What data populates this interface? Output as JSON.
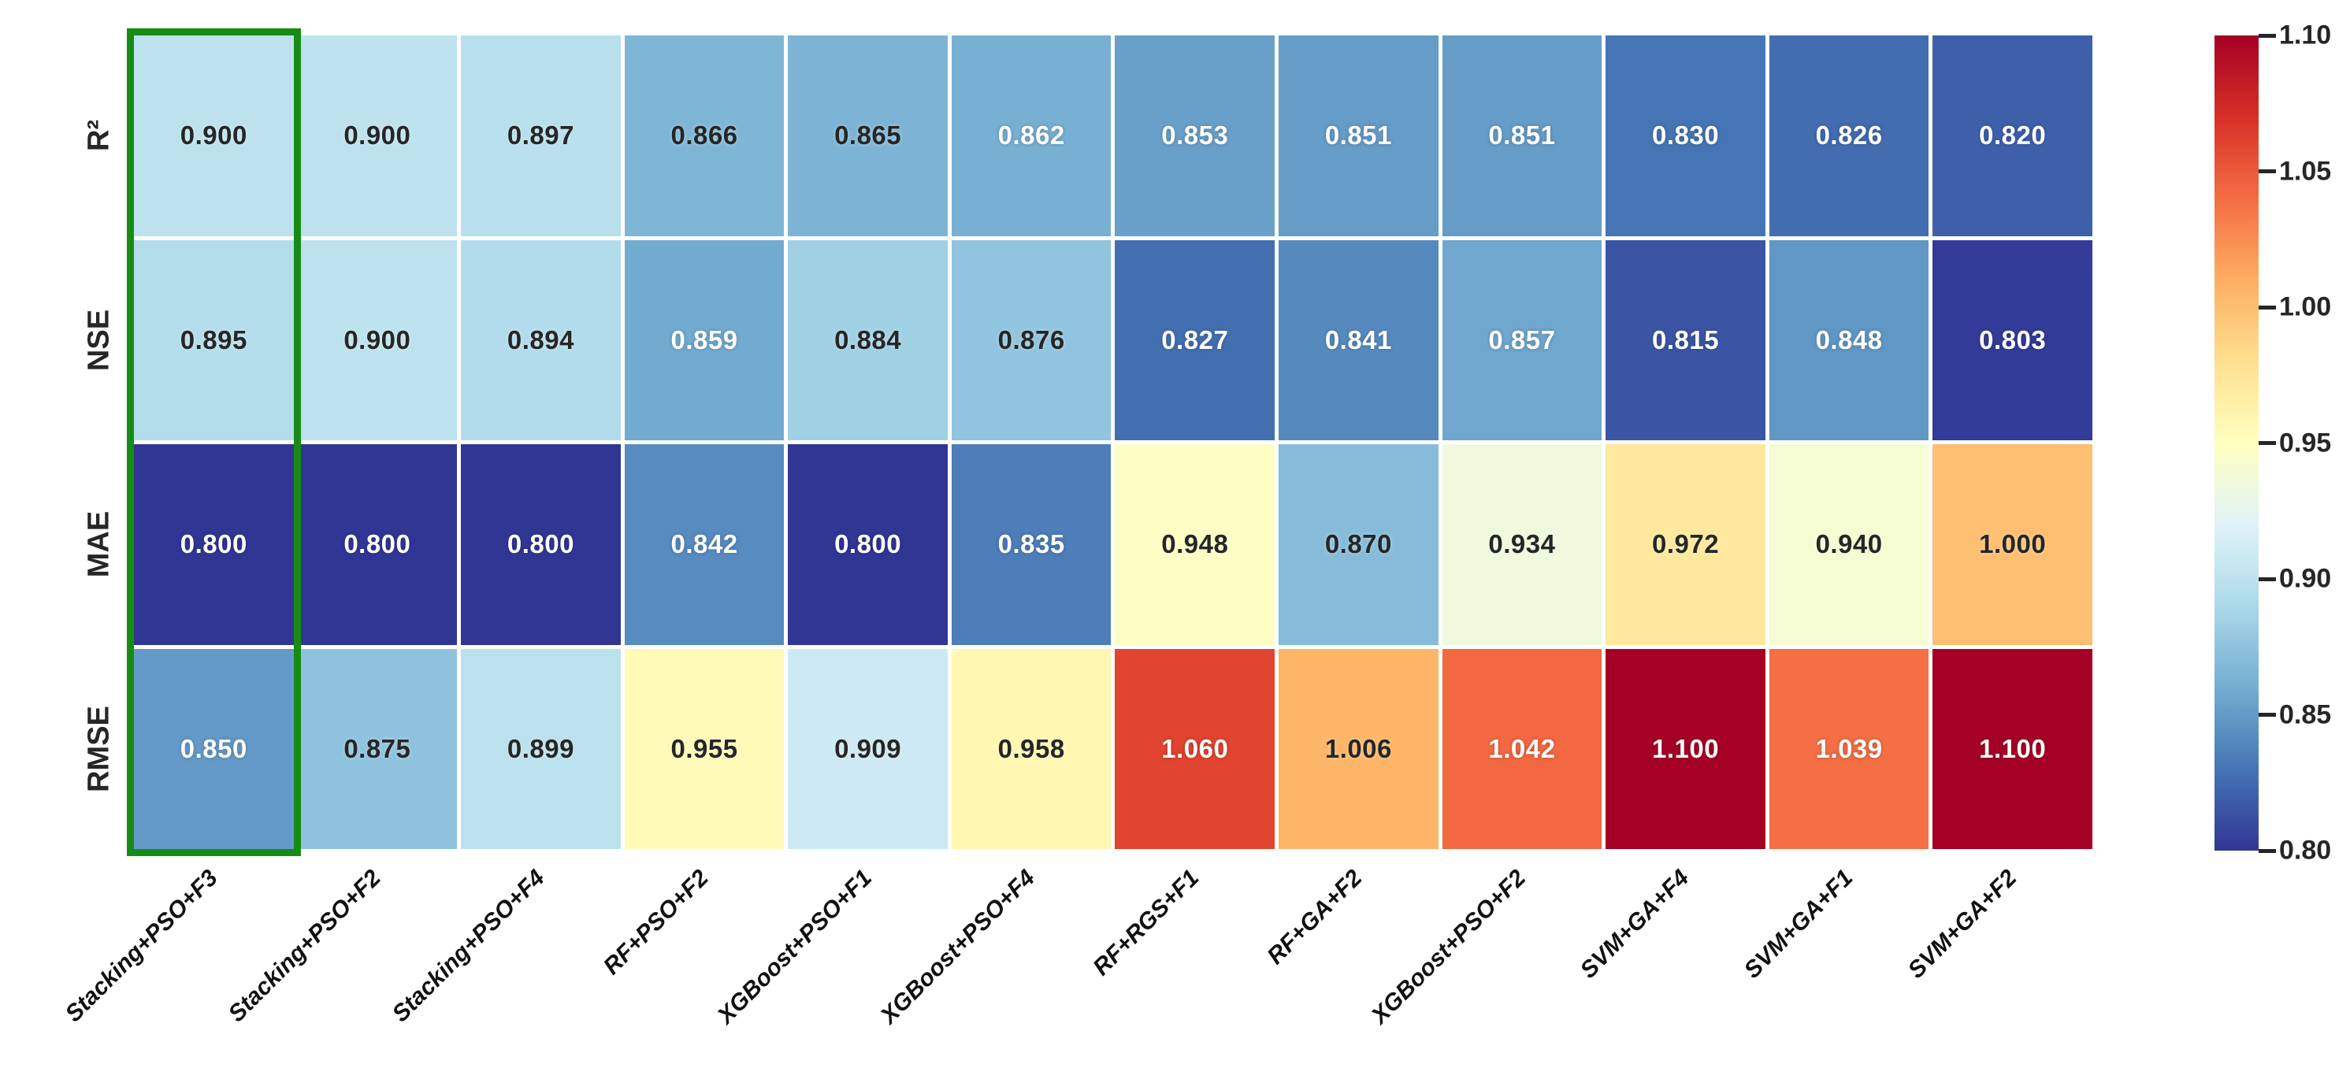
{
  "chart_data": {
    "type": "heatmap",
    "title": "",
    "rows": [
      "R²",
      "NSE",
      "MAE",
      "RMSE"
    ],
    "columns": [
      "Stacking+PSO+F3",
      "Stacking+PSO+F2",
      "Stacking+PSO+F4",
      "RF+PSO+F2",
      "XGBoost+PSO+F1",
      "XGBoost+PSO+F4",
      "RF+RGS+F1",
      "RF+GA+F2",
      "XGBoost+PSO+F2",
      "SVM+GA+F4",
      "SVM+GA+F1",
      "SVM+GA+F2"
    ],
    "values": [
      [
        "0.900",
        "0.900",
        "0.897",
        "0.866",
        "0.865",
        "0.862",
        "0.853",
        "0.851",
        "0.851",
        "0.830",
        "0.826",
        "0.820"
      ],
      [
        "0.895",
        "0.900",
        "0.894",
        "0.859",
        "0.884",
        "0.876",
        "0.827",
        "0.841",
        "0.857",
        "0.815",
        "0.848",
        "0.803"
      ],
      [
        "0.800",
        "0.800",
        "0.800",
        "0.842",
        "0.800",
        "0.835",
        "0.948",
        "0.870",
        "0.934",
        "0.972",
        "0.940",
        "1.000"
      ],
      [
        "0.850",
        "0.875",
        "0.899",
        "0.955",
        "0.909",
        "0.958",
        "1.060",
        "1.006",
        "1.042",
        "1.100",
        "1.039",
        "1.100"
      ]
    ],
    "vmin": 0.8,
    "vmax": 1.1,
    "colormap": "RdYlBu_r",
    "colormap_colors": [
      "#313695",
      "#4575b4",
      "#74add1",
      "#abd9e9",
      "#e0f3f8",
      "#ffffbf",
      "#fee090",
      "#fdae61",
      "#f46d43",
      "#d73027",
      "#a50026"
    ],
    "colorbar_ticks": [
      "1.10",
      "1.05",
      "1.00",
      "0.95",
      "0.90",
      "0.85",
      "0.80"
    ],
    "colorbar_position": "right",
    "grid_lines": "white",
    "highlighted_column": "Stacking+PSO+F3"
  },
  "style": {
    "highlight_color": "#168c16",
    "axis_label_color": "#262626",
    "annot_dark_text": "#262626",
    "annot_light_text": "#ffffff",
    "background": "#ffffff"
  }
}
